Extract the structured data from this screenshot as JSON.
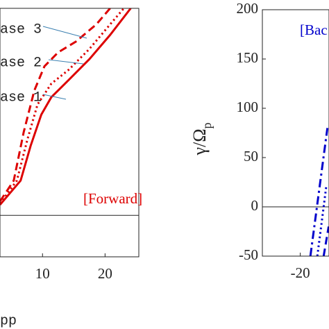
{
  "chart_data": [
    {
      "type": "line",
      "xlabel": "pp",
      "annotation": "[Forward]",
      "annotation_color": "#dd0000",
      "xlim": [
        3.2,
        25.4
      ],
      "ylim": [
        -0.98,
        4.89
      ],
      "xticks": [
        10,
        20
      ],
      "series": [
        {
          "name": "ase 1",
          "color": "#dd0000",
          "dash": "solid",
          "x": [
            3.2,
            6.5,
            8.1,
            9.8,
            11.4,
            14.2,
            17.5,
            20.8,
            24.1
          ],
          "values": [
            0.25,
            0.82,
            1.64,
            2.38,
            2.79,
            3.2,
            3.69,
            4.26,
            4.89
          ]
        },
        {
          "name": "ase 2",
          "color": "#dd0000",
          "dash": "dotted",
          "x": [
            3.2,
            5.9,
            7.6,
            9.2,
            11.4,
            14.2,
            17.5,
            20.8,
            23.0
          ],
          "values": [
            0.28,
            0.82,
            1.8,
            2.62,
            3.11,
            3.44,
            3.93,
            4.51,
            4.89
          ]
        },
        {
          "name": "ase 3",
          "color": "#dd0000",
          "dash": "dashed",
          "x": [
            3.2,
            5.4,
            7.0,
            8.7,
            10.3,
            12.5,
            15.3,
            18.6,
            20.8
          ],
          "values": [
            0.33,
            0.82,
            1.97,
            2.95,
            3.52,
            3.85,
            4.1,
            4.51,
            4.89
          ]
        }
      ]
    },
    {
      "type": "line",
      "ylabel": "γ/Ω",
      "ylabel_sub": "p",
      "annotation": "[Bac",
      "annotation_color": "#0000cc",
      "xlim": [
        -26,
        -15.45
      ],
      "ylim": [
        -50,
        200
      ],
      "xticks": [
        -20
      ],
      "yticks": [
        -50,
        0,
        50,
        100,
        150,
        200
      ],
      "series": [
        {
          "color": "#0000cc",
          "dash": "dashdot",
          "x": [
            -18.4,
            -15.7
          ],
          "values": [
            -50,
            80
          ]
        },
        {
          "color": "#0000cc",
          "dash": "dotted",
          "x": [
            -17.3,
            -16.3,
            -15.9
          ],
          "values": [
            -50,
            0,
            20
          ]
        },
        {
          "color": "#0000cc",
          "dash": "dashed",
          "x": [
            -16.3,
            -15.5
          ],
          "values": [
            -50,
            -20
          ]
        }
      ]
    }
  ]
}
